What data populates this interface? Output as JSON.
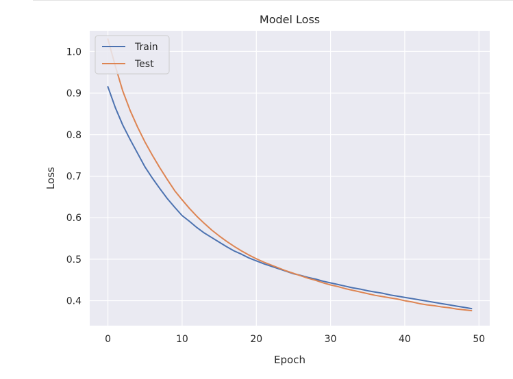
{
  "chart_data": {
    "type": "line",
    "title": "Model Loss",
    "xlabel": "Epoch",
    "ylabel": "Loss",
    "xlim": [
      -2.45,
      51.45
    ],
    "ylim": [
      0.34,
      1.05
    ],
    "xticks": [
      0,
      10,
      20,
      30,
      40,
      50
    ],
    "yticks": [
      0.4,
      0.5,
      0.6,
      0.7,
      0.8,
      0.9,
      1.0
    ],
    "xtick_labels": [
      "0",
      "10",
      "20",
      "30",
      "40",
      "50"
    ],
    "ytick_labels": [
      "0.4",
      "0.5",
      "0.6",
      "0.7",
      "0.8",
      "0.9",
      "1.0"
    ],
    "grid": true,
    "legend_position": "upper-left",
    "x": [
      0,
      1,
      2,
      3,
      4,
      5,
      6,
      7,
      8,
      9,
      10,
      11,
      12,
      13,
      14,
      15,
      16,
      17,
      18,
      19,
      20,
      21,
      22,
      23,
      24,
      25,
      26,
      27,
      28,
      29,
      30,
      31,
      32,
      33,
      34,
      35,
      36,
      37,
      38,
      39,
      40,
      41,
      42,
      43,
      44,
      45,
      46,
      47,
      48,
      49
    ],
    "series": [
      {
        "name": "Train",
        "color": "#4c72b0",
        "values": [
          0.915,
          0.865,
          0.823,
          0.788,
          0.755,
          0.722,
          0.695,
          0.67,
          0.646,
          0.625,
          0.605,
          0.591,
          0.576,
          0.563,
          0.552,
          0.541,
          0.53,
          0.52,
          0.512,
          0.503,
          0.496,
          0.489,
          0.483,
          0.477,
          0.471,
          0.465,
          0.461,
          0.456,
          0.452,
          0.447,
          0.443,
          0.439,
          0.435,
          0.431,
          0.428,
          0.424,
          0.421,
          0.418,
          0.414,
          0.411,
          0.408,
          0.405,
          0.402,
          0.399,
          0.396,
          0.393,
          0.39,
          0.387,
          0.384,
          0.381
        ]
      },
      {
        "name": "Test",
        "color": "#dd8452",
        "values": [
          1.03,
          0.965,
          0.905,
          0.858,
          0.818,
          0.782,
          0.75,
          0.72,
          0.692,
          0.665,
          0.643,
          0.622,
          0.603,
          0.586,
          0.57,
          0.556,
          0.543,
          0.531,
          0.52,
          0.51,
          0.501,
          0.493,
          0.486,
          0.479,
          0.472,
          0.466,
          0.46,
          0.454,
          0.449,
          0.443,
          0.438,
          0.434,
          0.429,
          0.425,
          0.421,
          0.417,
          0.413,
          0.41,
          0.407,
          0.404,
          0.4,
          0.397,
          0.393,
          0.39,
          0.388,
          0.385,
          0.383,
          0.38,
          0.378,
          0.376
        ]
      }
    ]
  },
  "colors": {
    "plot_background": "#eaeaf2",
    "grid": "#ffffff"
  }
}
